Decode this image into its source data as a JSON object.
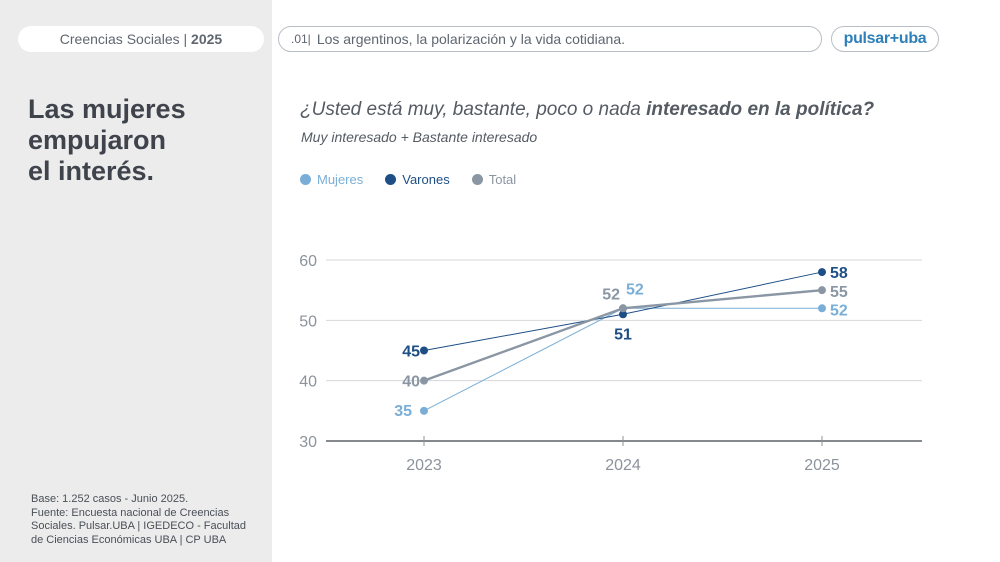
{
  "header": {
    "section": "Creencias Sociales |",
    "year": "2025",
    "topic_number": ".01|",
    "topic": "Los argentinos, la polarización y la vida cotidiana.",
    "brand": "pulsar+uba"
  },
  "headline": [
    "Las mujeres",
    "empujaron",
    "el interés."
  ],
  "footnote": [
    "Base: 1.252 casos - Junio 2025.",
    "Fuente: Encuesta nacional de Creencias",
    "Sociales. Pulsar.UBA | IGEDECO - Facultad",
    "de Ciencias Económicas UBA | CP UBA"
  ],
  "chart_data": {
    "type": "line",
    "title_prefix": "¿Usted está muy, bastante, poco o nada",
    "title_emphasis": "interesado en la política?",
    "subtitle": "Muy interesado + Bastante interesado",
    "categories": [
      "2023",
      "2024",
      "2025"
    ],
    "ylim": [
      30,
      60
    ],
    "yticks": [
      30,
      40,
      50,
      60
    ],
    "grid": true,
    "legend_position": "top-left",
    "series": [
      {
        "name": "Mujeres",
        "color": "#7aaed6",
        "values": [
          35,
          52,
          52
        ]
      },
      {
        "name": "Varones",
        "color": "#1d4f86",
        "values": [
          45,
          51,
          58
        ]
      },
      {
        "name": "Total",
        "color": "#8a96a3",
        "values": [
          40,
          52,
          55
        ]
      }
    ]
  }
}
